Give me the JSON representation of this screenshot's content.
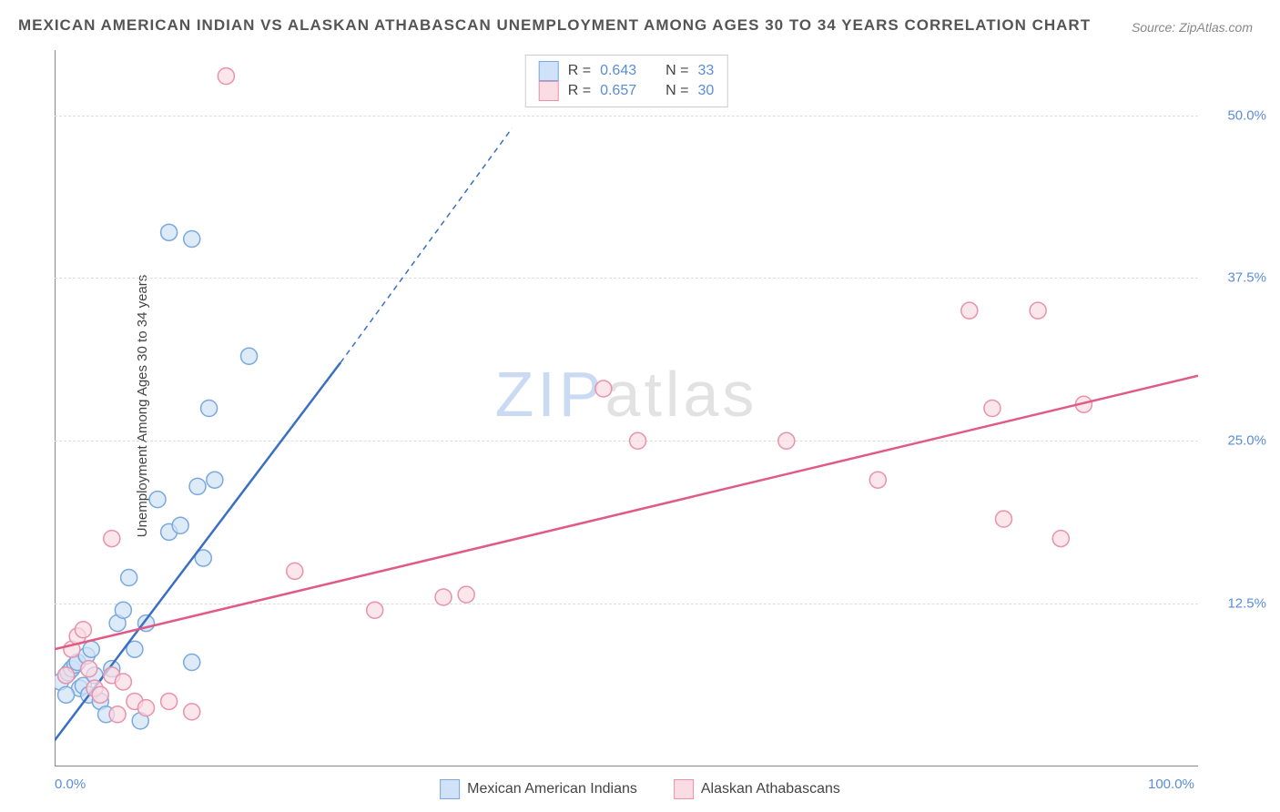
{
  "title": "MEXICAN AMERICAN INDIAN VS ALASKAN ATHABASCAN UNEMPLOYMENT AMONG AGES 30 TO 34 YEARS CORRELATION CHART",
  "source": "Source: ZipAtlas.com",
  "watermark_zip": "ZIP",
  "watermark_atlas": "atlas",
  "ylabel": "Unemployment Among Ages 30 to 34 years",
  "chart": {
    "type": "scatter",
    "background_color": "#ffffff",
    "grid_color": "#dddddd",
    "xlim": [
      0,
      100
    ],
    "ylim": [
      0,
      55
    ],
    "x_ticks": [
      {
        "value": 0,
        "label": "0.0%"
      },
      {
        "value": 100,
        "label": "100.0%"
      }
    ],
    "y_ticks": [
      {
        "value": 12.5,
        "label": "12.5%"
      },
      {
        "value": 25.0,
        "label": "25.0%"
      },
      {
        "value": 37.5,
        "label": "37.5%"
      },
      {
        "value": 50.0,
        "label": "50.0%"
      }
    ],
    "series": [
      {
        "name": "Mexican American Indians",
        "marker_fill": "#cfe2f7",
        "marker_stroke": "#7ba8dd",
        "marker_radius": 9,
        "line_color": "#3a6fc4",
        "line_width": 2.5,
        "trend": {
          "x1": 0,
          "y1": 2,
          "x2_solid": 25,
          "y2_solid": 31,
          "x2_dash": 40,
          "y2_dash": 49
        },
        "R": 0.643,
        "N": 33,
        "points": [
          [
            0.5,
            6.5
          ],
          [
            1,
            7
          ],
          [
            1.2,
            7.2
          ],
          [
            1.5,
            7.5
          ],
          [
            1.8,
            7.8
          ],
          [
            2,
            8
          ],
          [
            2.2,
            6
          ],
          [
            2.5,
            6.2
          ],
          [
            2.8,
            8.5
          ],
          [
            3,
            5.5
          ],
          [
            3.2,
            9
          ],
          [
            3.5,
            7
          ],
          [
            4,
            5
          ],
          [
            4.5,
            4
          ],
          [
            5,
            7.5
          ],
          [
            5.5,
            11
          ],
          [
            6,
            12
          ],
          [
            6.5,
            14.5
          ],
          [
            7,
            9
          ],
          [
            7.5,
            3.5
          ],
          [
            8,
            11
          ],
          [
            9,
            20.5
          ],
          [
            10,
            18
          ],
          [
            11,
            18.5
          ],
          [
            12,
            8
          ],
          [
            12.5,
            21.5
          ],
          [
            13,
            16
          ],
          [
            13.5,
            27.5
          ],
          [
            14,
            22
          ],
          [
            10,
            41
          ],
          [
            17,
            31.5
          ],
          [
            12,
            40.5
          ],
          [
            1,
            5.5
          ]
        ]
      },
      {
        "name": "Alaskan Athabascans",
        "marker_fill": "#fadce4",
        "marker_stroke": "#e892ac",
        "marker_radius": 9,
        "line_color": "#e05a85",
        "line_width": 2.5,
        "trend": {
          "x1": 0,
          "y1": 9,
          "x2_solid": 100,
          "y2_solid": 30,
          "x2_dash": 100,
          "y2_dash": 30
        },
        "R": 0.657,
        "N": 30,
        "points": [
          [
            1,
            7
          ],
          [
            1.5,
            9
          ],
          [
            2,
            10
          ],
          [
            2.5,
            10.5
          ],
          [
            3,
            7.5
          ],
          [
            3.5,
            6
          ],
          [
            4,
            5.5
          ],
          [
            5,
            7
          ],
          [
            5.5,
            4
          ],
          [
            6,
            6.5
          ],
          [
            7,
            5
          ],
          [
            8,
            4.5
          ],
          [
            10,
            5
          ],
          [
            12,
            4.2
          ],
          [
            5,
            17.5
          ],
          [
            15,
            53
          ],
          [
            21,
            15
          ],
          [
            28,
            12
          ],
          [
            34,
            13
          ],
          [
            36,
            13.2
          ],
          [
            48,
            29
          ],
          [
            51,
            25
          ],
          [
            64,
            25
          ],
          [
            72,
            22
          ],
          [
            80,
            35
          ],
          [
            82,
            27.5
          ],
          [
            83,
            19
          ],
          [
            86,
            35
          ],
          [
            88,
            17.5
          ],
          [
            90,
            27.8
          ]
        ]
      }
    ],
    "correlation_legend": {
      "r_label": "R =",
      "n_label": "N ="
    },
    "axis_color": "#888888",
    "label_color": "#5b8dd6"
  }
}
